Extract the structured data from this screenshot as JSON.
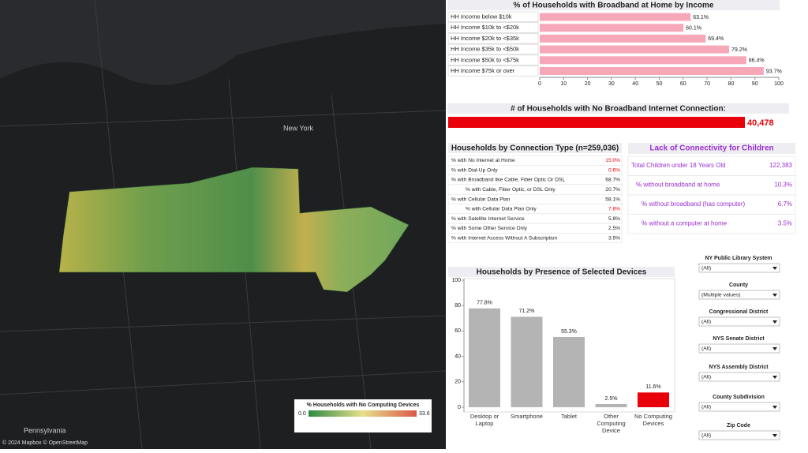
{
  "chart_data": [
    {
      "type": "bar",
      "orientation": "horizontal",
      "title": "% of Households with Broadband at Home by Income",
      "categories": [
        "HH Income below $10k",
        "HH Income $10k to <$20k",
        "HH Income $20k to <$35k",
        "HH Income $35k to <$50k",
        "HH Income $50k to <$75k",
        "HH Income $75k or over"
      ],
      "values": [
        63.1,
        60.1,
        69.4,
        79.2,
        86.4,
        93.7
      ],
      "value_labels": [
        "63.1%",
        "60.1%",
        "69.4%",
        "79.2%",
        "86.4%",
        "93.7%"
      ],
      "color": "#f7a8b8",
      "xlim": [
        0,
        100
      ],
      "xticks": [
        0,
        10,
        20,
        30,
        40,
        50,
        60,
        70,
        80,
        90,
        100
      ]
    },
    {
      "type": "bar",
      "orientation": "vertical",
      "title": "Households by Presence of Selected Devices",
      "categories": [
        "Desktop or Laptop",
        "Smartphone",
        "Tablet",
        "Other Computing Device",
        "No Computing Devices"
      ],
      "values": [
        77.8,
        71.2,
        55.3,
        2.5,
        11.6
      ],
      "value_labels": [
        "77.8%",
        "71.2%",
        "55.3%",
        "2.5%",
        "11.6%"
      ],
      "colors": [
        "#b4b4b4",
        "#b4b4b4",
        "#b4b4b4",
        "#b4b4b4",
        "#e8000b"
      ],
      "ylim": [
        0,
        100
      ],
      "yticks": [
        0,
        20,
        40,
        60,
        80,
        100
      ]
    }
  ],
  "no_broadband": {
    "title": "# of Households with No Broadband Internet Connection:",
    "value": "40,478"
  },
  "connection_table": {
    "title": "Households by Connection Type (n=259,036)",
    "rows": [
      [
        "% with No Internet at Home",
        "15.0%"
      ],
      [
        "% with Dial-Up Only",
        "0.6%"
      ],
      [
        "% with Broadband like Cable, Fiber Optic Or DSL",
        "68.7%"
      ],
      [
        "% with Cable, Fiber Optic, or DSL Only",
        "20.7%"
      ],
      [
        "% with Cellular Data Plan",
        "58.1%"
      ],
      [
        "% with Cellular Data Plan Only",
        "7.8%"
      ],
      [
        "% with Satellite Internet Service",
        "5.8%"
      ],
      [
        "% with Some Other Service Only",
        "2.5%"
      ],
      [
        "% with Internet Access Without A Subscription",
        "3.5%"
      ]
    ]
  },
  "children_table": {
    "title": "Lack of Connectivity for Children",
    "rows": [
      [
        "Total Children under 18 Years Old",
        "122,383"
      ],
      [
        "% without broadband at home",
        "10.3%"
      ],
      [
        "% without broadband (has computer)",
        "6.7%"
      ],
      [
        "% without a computer at home",
        "3.5%"
      ]
    ]
  },
  "filters": [
    {
      "label": "NY Public Library System",
      "value": "(All)"
    },
    {
      "label": "County",
      "value": "(Multiple values)"
    },
    {
      "label": "Congressional District",
      "value": "(All)"
    },
    {
      "label": "NYS Senate District",
      "value": "(All)"
    },
    {
      "label": "NYS Assembly District",
      "value": "(All)"
    },
    {
      "label": "County Subdivision",
      "value": "(All)"
    },
    {
      "label": "Zip Code",
      "value": "(All)"
    }
  ],
  "map": {
    "labels": [
      "New York",
      "Pennsylvania"
    ],
    "attribution": "© 2024 Mapbox © OpenStreetMap",
    "legend": {
      "title": "% Households with No Computing Devices",
      "min": "0.0",
      "max": "33.6"
    }
  }
}
